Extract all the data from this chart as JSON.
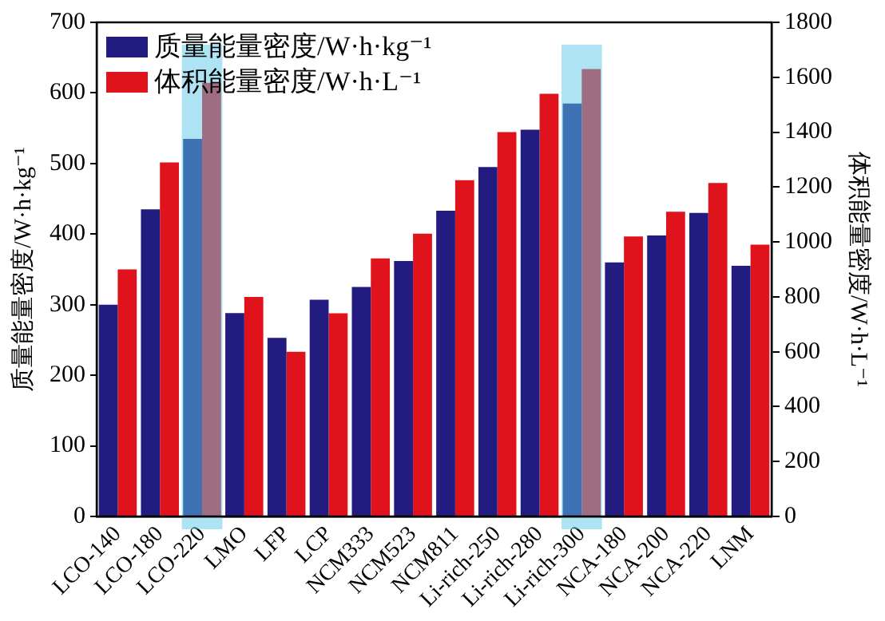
{
  "chart_data": {
    "type": "bar",
    "categories": [
      "LCO-140",
      "LCO-180",
      "LCO-220",
      "LMO",
      "LFP",
      "LCP",
      "NCM333",
      "NCM523",
      "NCM811",
      "Li-rich-250",
      "Li-rich-280",
      "Li-rich-300",
      "NCA-180",
      "NCA-200",
      "NCA-220",
      "LNM"
    ],
    "series": [
      {
        "name": "质量能量密度/W·h·kg⁻¹",
        "color": "#231c80",
        "values": [
          300,
          435,
          535,
          288,
          253,
          307,
          325,
          362,
          433,
          495,
          548,
          585,
          360,
          398,
          430,
          355
        ]
      },
      {
        "name": "体积能量密度/W·h·L⁻¹",
        "color": "#e0121c",
        "axis": "y2",
        "values": [
          900,
          1290,
          1580,
          800,
          600,
          740,
          940,
          1030,
          1225,
          1400,
          1540,
          1630,
          1020,
          1110,
          1215,
          990
        ]
      }
    ],
    "ylabel": "质量能量密度/W·h·kg⁻¹",
    "y2label": "体积能量密度/W·h·L⁻¹",
    "ylim": [
      0,
      700
    ],
    "yticks": [
      0,
      100,
      200,
      300,
      400,
      500,
      600,
      700
    ],
    "y2lim": [
      0,
      1800
    ],
    "y2ticks": [
      0,
      200,
      400,
      600,
      800,
      1000,
      1200,
      1400,
      1600,
      1800
    ],
    "bands": [
      {
        "axis": "x",
        "from": "LCO-220",
        "to": "LCO-220",
        "color": "#5bc8e8"
      },
      {
        "axis": "x",
        "from": "Li-rich-300",
        "to": "Li-rich-300",
        "color": "#5bc8e8"
      }
    ],
    "legend": "top left",
    "grid": false
  }
}
